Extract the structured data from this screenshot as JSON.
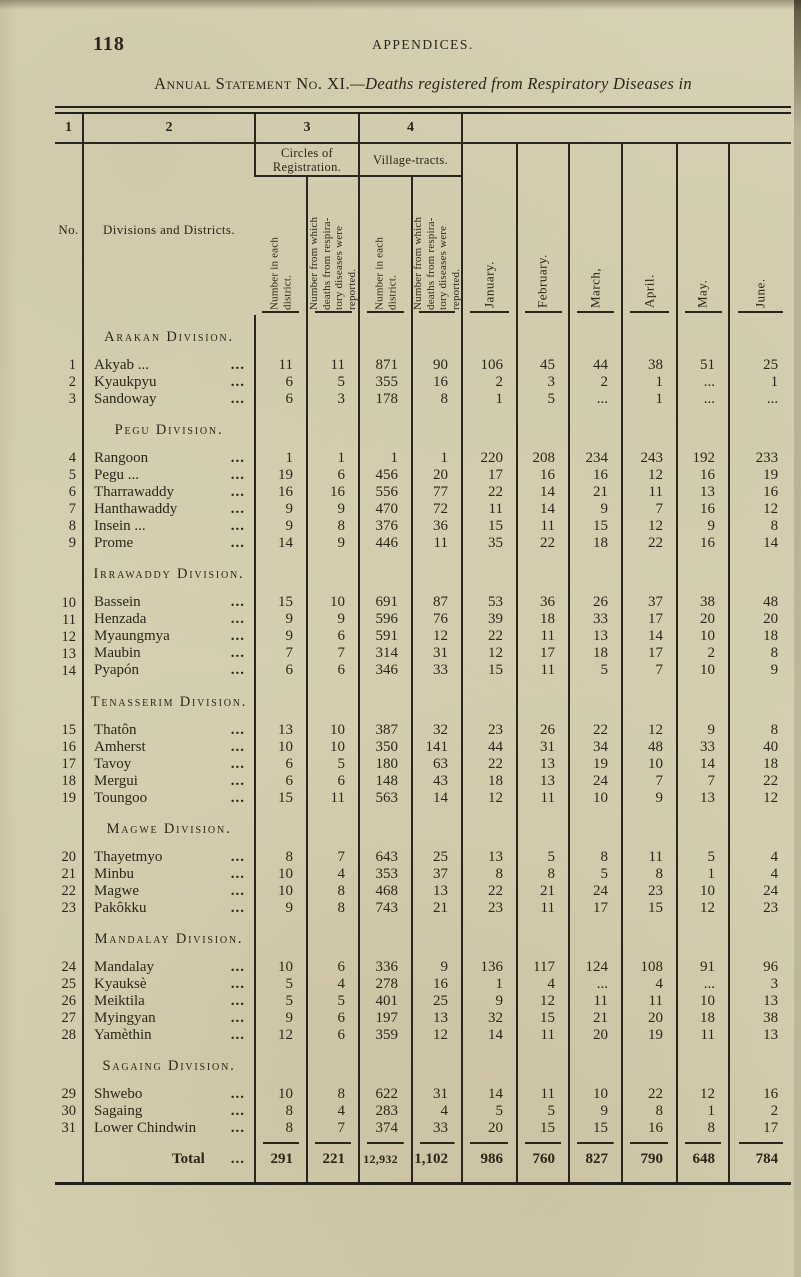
{
  "colors": {
    "paper": "#d7d1b4",
    "ink": "#2b2619",
    "rule": "#23201a"
  },
  "page": {
    "number": "118",
    "running_head": "APPENDICES.",
    "title_caps": "Annual Statement No. XI.",
    "title_rest": "—Deaths registered from Respiratory Diseases in"
  },
  "table": {
    "col_numbers": [
      "1",
      "2",
      "3",
      "4"
    ],
    "no_label": "No.",
    "districts_label": "Divisions and Districts.",
    "group_headers": {
      "circles": "Circles of\nRegistration.",
      "village": "Village-tracts."
    },
    "subcol_labels": {
      "number_each": "Number in each\ndistrict.",
      "number_reported": "Number from which\ndeaths from respira-\ntory diseases were\nreported."
    },
    "months": [
      "January.",
      "February.",
      "March,",
      "April.",
      "May.",
      "June."
    ],
    "leader": "...",
    "divisions": [
      {
        "name": "Arakan Division.",
        "rows": [
          {
            "no": "1",
            "name": "Akyab ...",
            "cells": [
              "11",
              "11",
              "871",
              "90",
              "106",
              "45",
              "44",
              "38",
              "51",
              "25"
            ]
          },
          {
            "no": "2",
            "name": "Kyaukpyu",
            "cells": [
              "6",
              "5",
              "355",
              "16",
              "2",
              "3",
              "2",
              "1",
              "...",
              "1"
            ]
          },
          {
            "no": "3",
            "name": "Sandoway",
            "cells": [
              "6",
              "3",
              "178",
              "8",
              "1",
              "5",
              "...",
              "1",
              "...",
              "..."
            ]
          }
        ]
      },
      {
        "name": "Pegu Division.",
        "rows": [
          {
            "no": "4",
            "name": "Rangoon",
            "cells": [
              "1",
              "1",
              "1",
              "1",
              "220",
              "208",
              "234",
              "243",
              "192",
              "233"
            ]
          },
          {
            "no": "5",
            "name": "Pegu ...",
            "cells": [
              "19",
              "6",
              "456",
              "20",
              "17",
              "16",
              "16",
              "12",
              "16",
              "19"
            ]
          },
          {
            "no": "6",
            "name": "Tharrawaddy",
            "cells": [
              "16",
              "16",
              "556",
              "77",
              "22",
              "14",
              "21",
              "11",
              "13",
              "16"
            ]
          },
          {
            "no": "7",
            "name": "Hanthawaddy",
            "cells": [
              "9",
              "9",
              "470",
              "72",
              "11",
              "14",
              "9",
              "7",
              "16",
              "12"
            ]
          },
          {
            "no": "8",
            "name": "Insein ...",
            "cells": [
              "9",
              "8",
              "376",
              "36",
              "15",
              "11",
              "15",
              "12",
              "9",
              "8"
            ]
          },
          {
            "no": "9",
            "name": "Prome",
            "cells": [
              "14",
              "9",
              "446",
              "11",
              "35",
              "22",
              "18",
              "22",
              "16",
              "14"
            ]
          }
        ]
      },
      {
        "name": "Irrawaddy Division.",
        "rows": [
          {
            "no": "10",
            "name": "Bassein",
            "cells": [
              "15",
              "10",
              "691",
              "87",
              "53",
              "36",
              "26",
              "37",
              "38",
              "48"
            ]
          },
          {
            "no": "11",
            "name": "Henzada",
            "cells": [
              "9",
              "9",
              "596",
              "76",
              "39",
              "18",
              "33",
              "17",
              "20",
              "20"
            ]
          },
          {
            "no": "12",
            "name": "Myaungmya",
            "cells": [
              "9",
              "6",
              "591",
              "12",
              "22",
              "11",
              "13",
              "14",
              "10",
              "18"
            ]
          },
          {
            "no": "13",
            "name": "Maubin",
            "cells": [
              "7",
              "7",
              "314",
              "31",
              "12",
              "17",
              "18",
              "17",
              "2",
              "8"
            ]
          },
          {
            "no": "14",
            "name": "Pyapón",
            "cells": [
              "6",
              "6",
              "346",
              "33",
              "15",
              "11",
              "5",
              "7",
              "10",
              "9"
            ]
          }
        ]
      },
      {
        "name": "Tenasserim Division.",
        "rows": [
          {
            "no": "15",
            "name": "Thatôn",
            "cells": [
              "13",
              "10",
              "387",
              "32",
              "23",
              "26",
              "22",
              "12",
              "9",
              "8"
            ]
          },
          {
            "no": "16",
            "name": "Amherst",
            "cells": [
              "10",
              "10",
              "350",
              "141",
              "44",
              "31",
              "34",
              "48",
              "33",
              "40"
            ]
          },
          {
            "no": "17",
            "name": "Tavoy",
            "cells": [
              "6",
              "5",
              "180",
              "63",
              "22",
              "13",
              "19",
              "10",
              "14",
              "18"
            ]
          },
          {
            "no": "18",
            "name": "Mergui",
            "cells": [
              "6",
              "6",
              "148",
              "43",
              "18",
              "13",
              "24",
              "7",
              "7",
              "22"
            ]
          },
          {
            "no": "19",
            "name": "Toungoo",
            "cells": [
              "15",
              "11",
              "563",
              "14",
              "12",
              "11",
              "10",
              "9",
              "13",
              "12"
            ]
          }
        ]
      },
      {
        "name": "Magwe Division.",
        "rows": [
          {
            "no": "20",
            "name": "Thayetmyo",
            "cells": [
              "8",
              "7",
              "643",
              "25",
              "13",
              "5",
              "8",
              "11",
              "5",
              "4"
            ]
          },
          {
            "no": "21",
            "name": "Minbu",
            "cells": [
              "10",
              "4",
              "353",
              "37",
              "8",
              "8",
              "5",
              "8",
              "1",
              "4"
            ]
          },
          {
            "no": "22",
            "name": "Magwe",
            "cells": [
              "10",
              "8",
              "468",
              "13",
              "22",
              "21",
              "24",
              "23",
              "10",
              "24"
            ]
          },
          {
            "no": "23",
            "name": "Pakôkku",
            "cells": [
              "9",
              "8",
              "743",
              "21",
              "23",
              "11",
              "17",
              "15",
              "12",
              "23"
            ]
          }
        ]
      },
      {
        "name": "Mandalay Division.",
        "rows": [
          {
            "no": "24",
            "name": "Mandalay",
            "cells": [
              "10",
              "6",
              "336",
              "9",
              "136",
              "117",
              "124",
              "108",
              "91",
              "96"
            ]
          },
          {
            "no": "25",
            "name": "Kyauksè",
            "cells": [
              "5",
              "4",
              "278",
              "16",
              "1",
              "4",
              "...",
              "4",
              "...",
              "3"
            ]
          },
          {
            "no": "26",
            "name": "Meiktila",
            "cells": [
              "5",
              "5",
              "401",
              "25",
              "9",
              "12",
              "11",
              "11",
              "10",
              "13"
            ]
          },
          {
            "no": "27",
            "name": "Myingyan",
            "cells": [
              "9",
              "6",
              "197",
              "13",
              "32",
              "15",
              "21",
              "20",
              "18",
              "38"
            ]
          },
          {
            "no": "28",
            "name": "Yamèthin",
            "cells": [
              "12",
              "6",
              "359",
              "12",
              "14",
              "11",
              "20",
              "19",
              "11",
              "13"
            ]
          }
        ]
      },
      {
        "name": "Sagaing Division.",
        "rows": [
          {
            "no": "29",
            "name": "Shwebo",
            "cells": [
              "10",
              "8",
              "622",
              "31",
              "14",
              "11",
              "10",
              "22",
              "12",
              "16"
            ]
          },
          {
            "no": "30",
            "name": "Sagaing",
            "cells": [
              "8",
              "4",
              "283",
              "4",
              "5",
              "5",
              "9",
              "8",
              "1",
              "2"
            ]
          },
          {
            "no": "31",
            "name": "Lower Chindwin",
            "cells": [
              "8",
              "7",
              "374",
              "33",
              "20",
              "15",
              "15",
              "16",
              "8",
              "17"
            ]
          }
        ]
      }
    ],
    "total": {
      "label": "Total",
      "cells": [
        "291",
        "221",
        "12,932",
        "1,102",
        "986",
        "760",
        "827",
        "790",
        "648",
        "784"
      ]
    }
  }
}
